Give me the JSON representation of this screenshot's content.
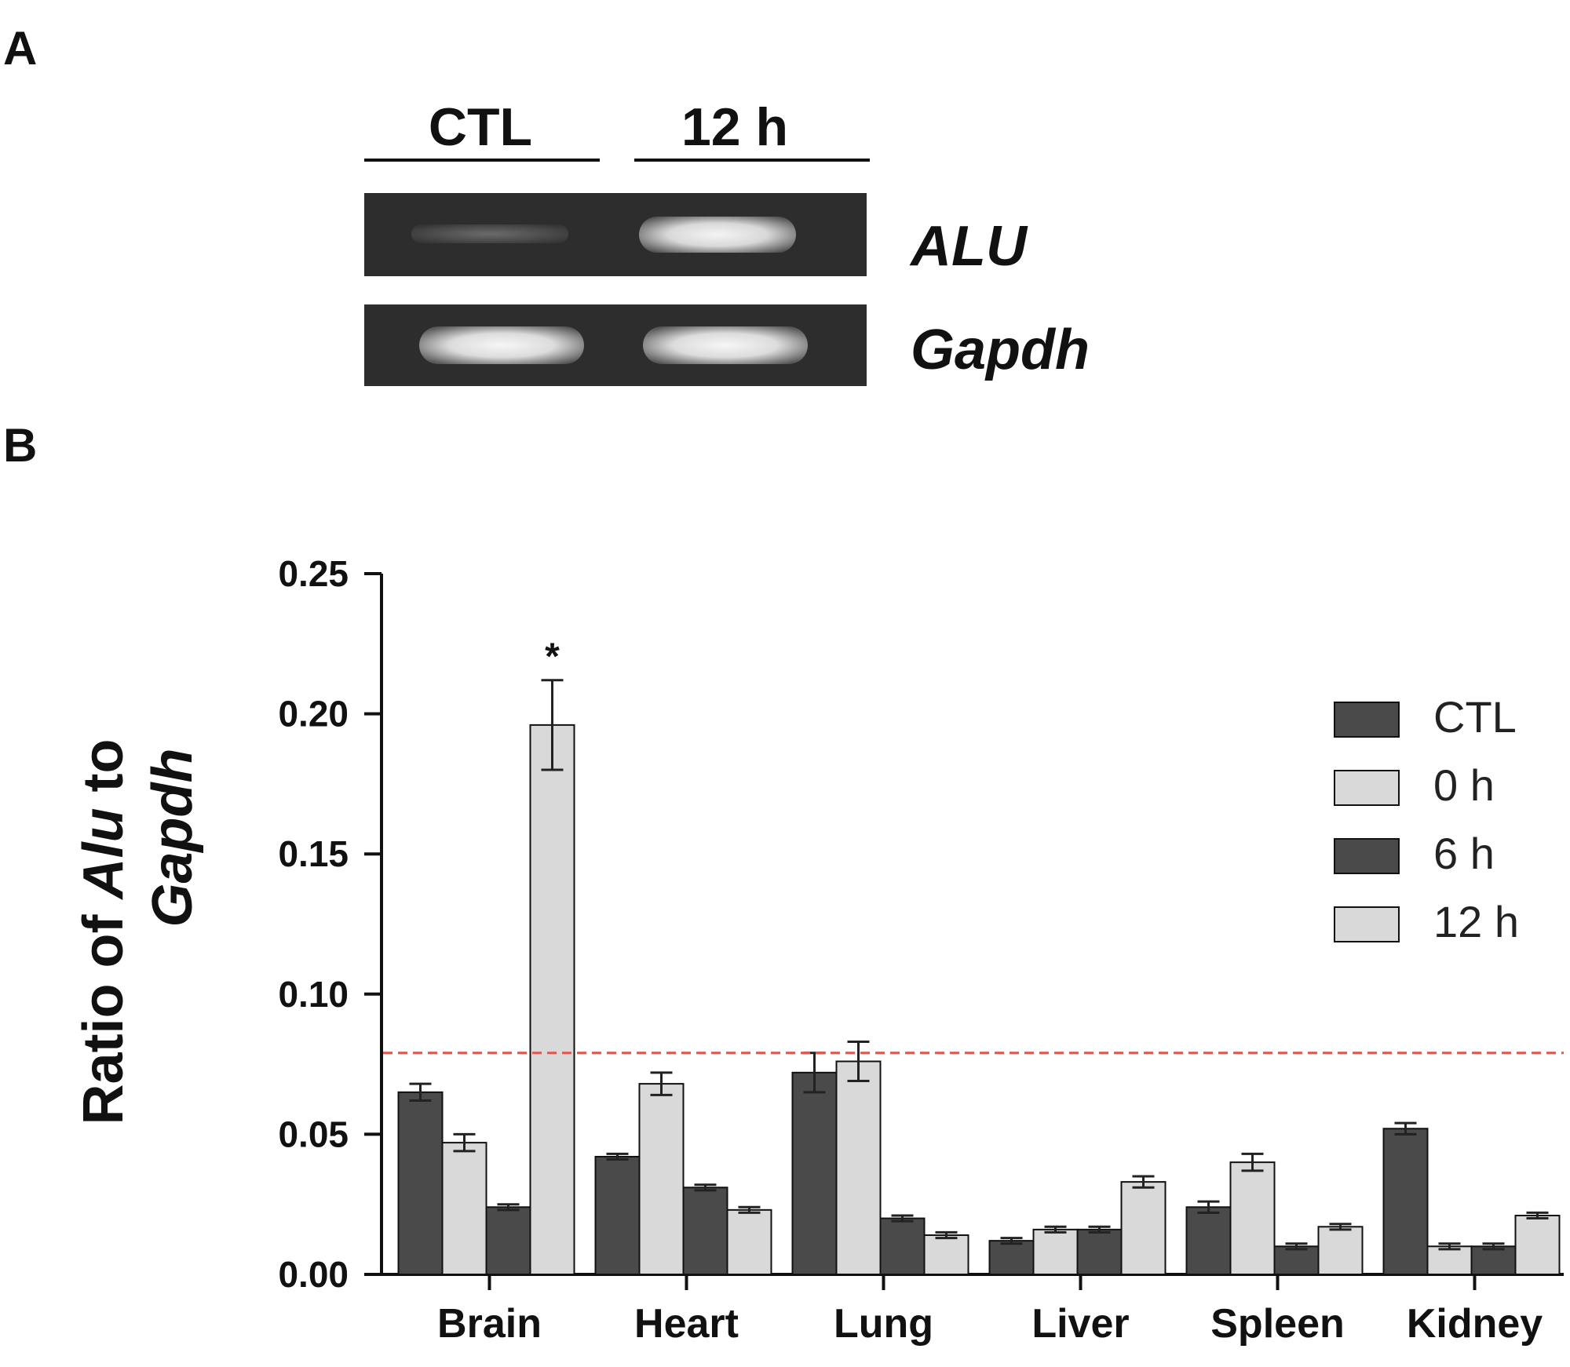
{
  "panel_a": {
    "letter": "A",
    "lanes": [
      "CTL",
      "12 h"
    ],
    "genes": [
      "ALU",
      "Gapdh"
    ]
  },
  "panel_b": {
    "letter": "B"
  },
  "colors": {
    "dark_bar": "#4a4a4a",
    "light_bar": "#d9d9d9",
    "bar_edge": "#111111",
    "reference_line": "#e0564f",
    "gel_background": "#2d2d2d",
    "gel_band": "#f2f2f2"
  },
  "chart_data": {
    "type": "bar",
    "title": "",
    "xlabel": "",
    "ylabel_parts": [
      "Ratio of ",
      "Alu",
      " to",
      "Gapdh"
    ],
    "ylim": [
      0,
      0.25
    ],
    "yticks": [
      "0.00",
      "0.05",
      "0.10",
      "0.15",
      "0.20",
      "0.25"
    ],
    "categories": [
      "Brain",
      "Heart",
      "Lung",
      "Liver",
      "Spleen",
      "Kidney"
    ],
    "series": [
      {
        "name": "CTL",
        "color": "#4a4a4a",
        "values": [
          0.065,
          0.042,
          0.072,
          0.012,
          0.024,
          0.052
        ],
        "errors": [
          0.003,
          0.001,
          0.007,
          0.001,
          0.002,
          0.002
        ]
      },
      {
        "name": "0 h",
        "color": "#d9d9d9",
        "values": [
          0.047,
          0.068,
          0.076,
          0.016,
          0.04,
          0.01
        ],
        "errors": [
          0.003,
          0.004,
          0.007,
          0.001,
          0.003,
          0.001
        ]
      },
      {
        "name": "6 h",
        "color": "#4a4a4a",
        "values": [
          0.024,
          0.031,
          0.02,
          0.016,
          0.01,
          0.01
        ],
        "errors": [
          0.001,
          0.001,
          0.001,
          0.001,
          0.001,
          0.001
        ]
      },
      {
        "name": "12 h",
        "color": "#d9d9d9",
        "values": [
          0.196,
          0.023,
          0.014,
          0.033,
          0.017,
          0.021
        ],
        "errors": [
          0.016,
          0.001,
          0.001,
          0.002,
          0.001,
          0.001
        ]
      }
    ],
    "legend_position": "top-right",
    "reference_line": {
      "y": 0.079,
      "style": "dashed",
      "color": "#e0564f"
    },
    "annotations": [
      {
        "text": "*",
        "category": "Brain",
        "series": "12 h"
      }
    ]
  }
}
